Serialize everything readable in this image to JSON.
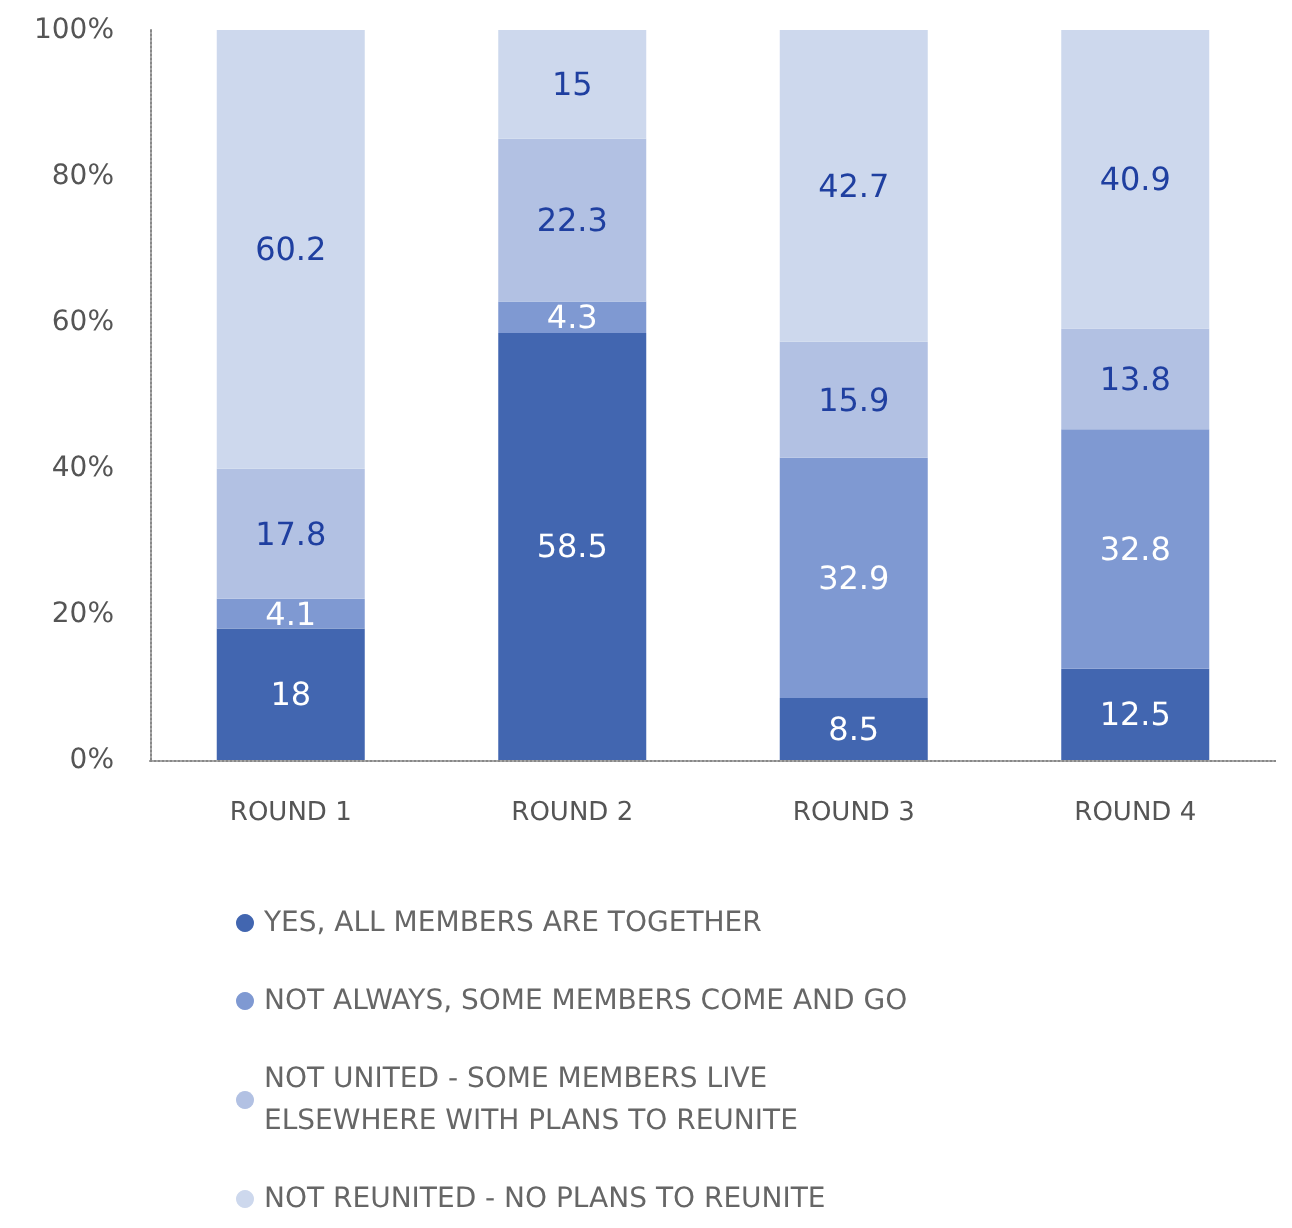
{
  "chart_data": {
    "type": "bar",
    "stacked": true,
    "categories": [
      "ROUND 1",
      "ROUND 2",
      "ROUND 3",
      "ROUND 4"
    ],
    "series": [
      {
        "name": "YES, ALL MEMBERS ARE TOGETHER",
        "color": "#4266b0",
        "values": [
          18,
          58.5,
          8.5,
          12.5
        ]
      },
      {
        "name": "NOT ALWAYS, SOME MEMBERS COME AND GO",
        "color": "#7f99d2",
        "values": [
          4.1,
          4.3,
          32.9,
          32.8
        ]
      },
      {
        "name": "NOT UNITED - SOME MEMBERS LIVE ELSEWHERE WITH PLANS TO REUNITE",
        "color": "#b2c1e3",
        "values": [
          17.8,
          22.3,
          15.9,
          13.8
        ]
      },
      {
        "name": "NOT REUNITED - NO PLANS TO REUNITE",
        "color": "#cdd8ed",
        "values": [
          60.2,
          15,
          42.7,
          40.9
        ]
      }
    ],
    "ylim": [
      0,
      100
    ],
    "yticks": [
      {
        "value": 0,
        "label": "0%"
      },
      {
        "value": 20,
        "label": "20%"
      },
      {
        "value": 40,
        "label": "40%"
      },
      {
        "value": 60,
        "label": "60%"
      },
      {
        "value": 80,
        "label": "80%"
      },
      {
        "value": 100,
        "label": "100%"
      }
    ],
    "grid": false,
    "legend": "bottom",
    "data_labels": true
  }
}
